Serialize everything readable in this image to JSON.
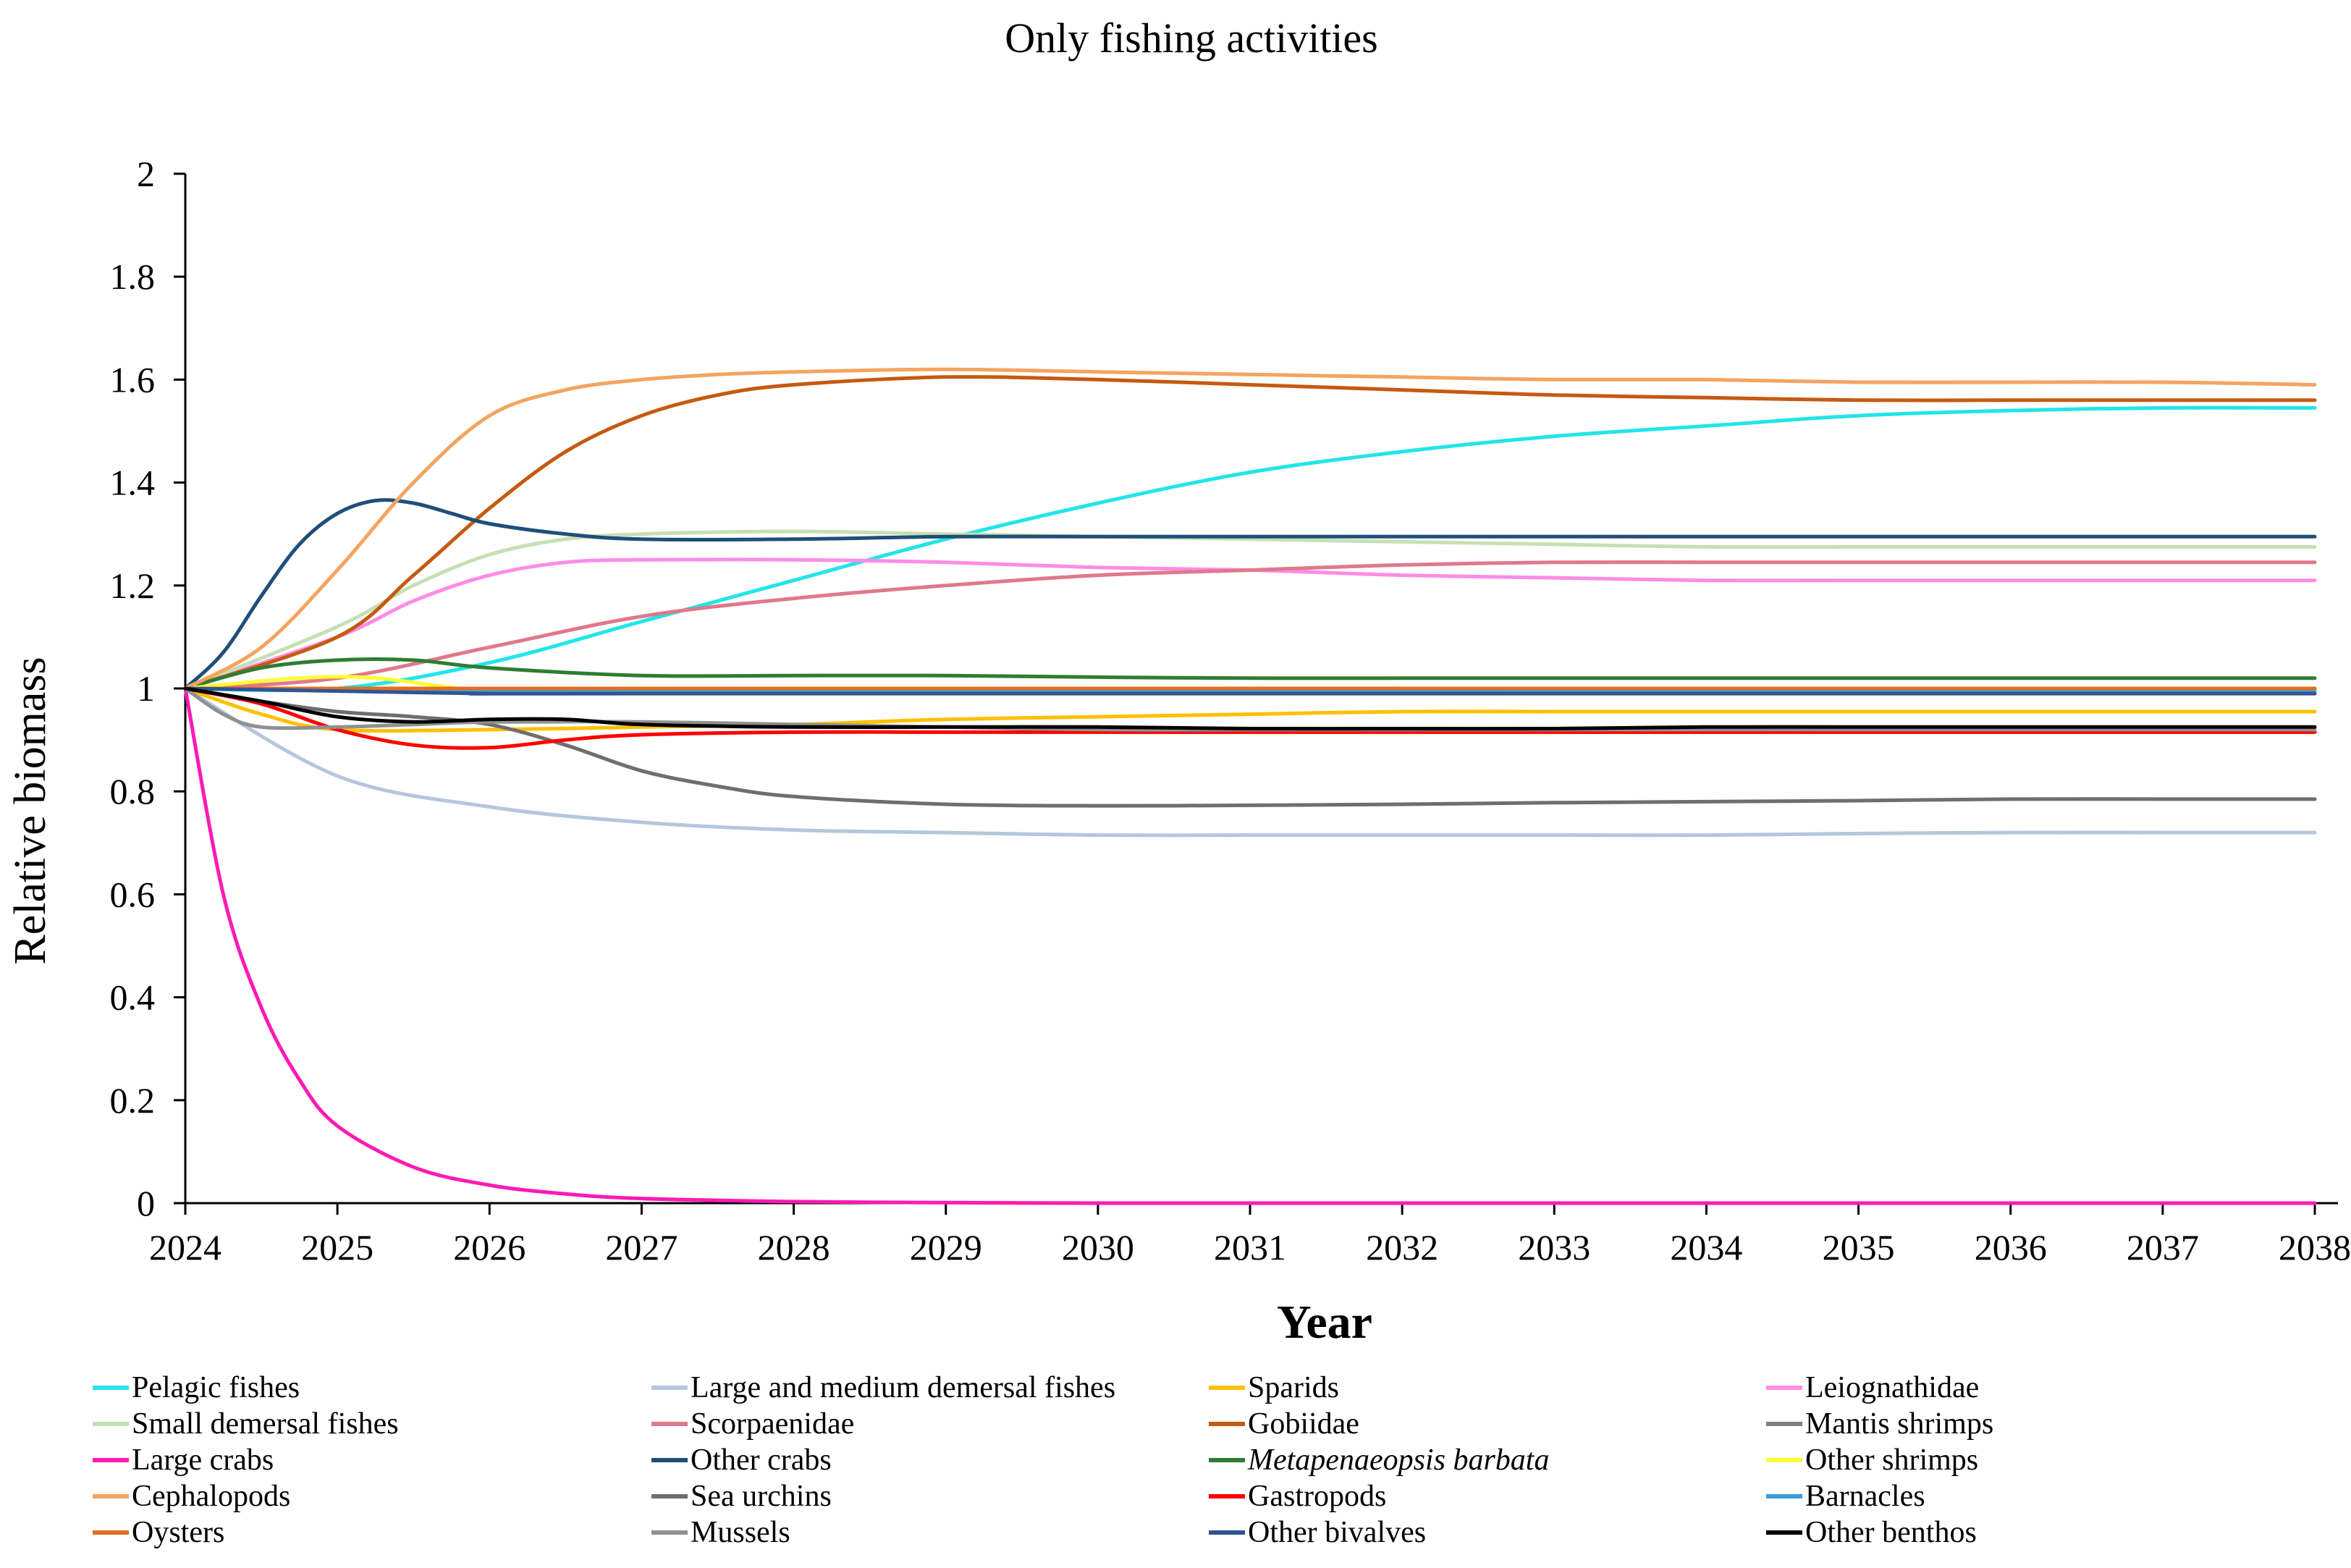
{
  "chart_data": {
    "type": "line",
    "title": "Only fishing activities",
    "xlabel": "Year",
    "ylabel": "Relative biomass",
    "xlim": [
      2024,
      2038
    ],
    "ylim": [
      0,
      2
    ],
    "x_ticks": [
      "2024",
      "2025",
      "2026",
      "2027",
      "2028",
      "2029",
      "2030",
      "2031",
      "2032",
      "2033",
      "2034",
      "2035",
      "2036",
      "2037",
      "2038"
    ],
    "y_ticks": [
      "0",
      "0.2",
      "0.4",
      "0.6",
      "0.8",
      "1",
      "1.2",
      "1.4",
      "1.6",
      "1.8",
      "2"
    ],
    "y_tick_values": [
      0,
      0.2,
      0.4,
      0.6,
      0.8,
      1,
      1.2,
      1.4,
      1.6,
      1.8,
      2
    ],
    "grid": false,
    "legend_position": "bottom",
    "series": [
      {
        "name": "Pelagic fishes",
        "color": "#22e5e8",
        "x": [
          2024,
          2025,
          2026,
          2027,
          2028,
          2029,
          2030,
          2031,
          2032,
          2033,
          2034,
          2035,
          2036,
          2037,
          2038
        ],
        "values": [
          1.0,
          1.0,
          1.05,
          1.13,
          1.21,
          1.29,
          1.36,
          1.42,
          1.46,
          1.49,
          1.51,
          1.53,
          1.54,
          1.545,
          1.545
        ]
      },
      {
        "name": "Large and medium demersal fishes",
        "color": "#b4c7dc",
        "x": [
          2024,
          2025,
          2026,
          2027,
          2028,
          2029,
          2030,
          2031,
          2032,
          2033,
          2034,
          2035,
          2036,
          2037,
          2038
        ],
        "values": [
          1.0,
          0.83,
          0.77,
          0.74,
          0.725,
          0.72,
          0.715,
          0.715,
          0.715,
          0.715,
          0.715,
          0.718,
          0.72,
          0.72,
          0.72
        ]
      },
      {
        "name": "Sparids",
        "color": "#ffc000",
        "x": [
          2024,
          2024.5,
          2025,
          2026,
          2027,
          2028,
          2029,
          2030,
          2031,
          2032,
          2033,
          2034,
          2035,
          2036,
          2037,
          2038
        ],
        "values": [
          1.0,
          0.95,
          0.92,
          0.92,
          0.925,
          0.93,
          0.94,
          0.945,
          0.95,
          0.955,
          0.955,
          0.955,
          0.955,
          0.955,
          0.955,
          0.955
        ]
      },
      {
        "name": "Leiognathidae",
        "color": "#ff8ce6",
        "x": [
          2024,
          2025,
          2025.5,
          2026,
          2026.5,
          2027,
          2028,
          2029,
          2030,
          2031,
          2032,
          2033,
          2034,
          2035,
          2036,
          2037,
          2038
        ],
        "values": [
          1.0,
          1.1,
          1.17,
          1.22,
          1.245,
          1.25,
          1.25,
          1.245,
          1.235,
          1.23,
          1.22,
          1.215,
          1.21,
          1.21,
          1.21,
          1.21,
          1.21
        ]
      },
      {
        "name": "Small demersal fishes",
        "color": "#c6e0b4",
        "x": [
          2024,
          2025,
          2025.5,
          2026,
          2026.5,
          2027,
          2028,
          2029,
          2030,
          2031,
          2032,
          2033,
          2034,
          2035,
          2036,
          2037,
          2038
        ],
        "values": [
          1.0,
          1.12,
          1.2,
          1.26,
          1.29,
          1.3,
          1.305,
          1.3,
          1.295,
          1.29,
          1.285,
          1.28,
          1.275,
          1.275,
          1.275,
          1.275,
          1.275
        ]
      },
      {
        "name": "Scorpaenidae",
        "color": "#e0788c",
        "x": [
          2024,
          2025,
          2026,
          2027,
          2028,
          2029,
          2030,
          2031,
          2032,
          2033,
          2034,
          2035,
          2036,
          2037,
          2038
        ],
        "values": [
          1.0,
          1.02,
          1.08,
          1.14,
          1.175,
          1.2,
          1.22,
          1.23,
          1.24,
          1.245,
          1.245,
          1.245,
          1.245,
          1.245,
          1.245
        ]
      },
      {
        "name": "Gobiidae",
        "color": "#c55a11",
        "x": [
          2024,
          2025,
          2025.5,
          2026,
          2026.5,
          2027,
          2027.5,
          2028,
          2029,
          2030,
          2031,
          2032,
          2033,
          2034,
          2035,
          2036,
          2037,
          2038
        ],
        "values": [
          1.0,
          1.1,
          1.22,
          1.35,
          1.46,
          1.53,
          1.57,
          1.59,
          1.605,
          1.6,
          1.59,
          1.58,
          1.57,
          1.565,
          1.56,
          1.56,
          1.56,
          1.56
        ]
      },
      {
        "name": "Mantis shrimps",
        "color": "#7f7f7f",
        "x": [
          2024,
          2038
        ],
        "values": [
          1.0,
          1.0
        ]
      },
      {
        "name": "Large crabs",
        "color": "#ff1ab3",
        "x": [
          2024,
          2024.25,
          2024.5,
          2024.75,
          2025,
          2025.5,
          2026,
          2026.5,
          2027,
          2028,
          2029,
          2030,
          2031,
          2032,
          2033,
          2034,
          2035,
          2036,
          2037,
          2038
        ],
        "values": [
          1.0,
          0.6,
          0.38,
          0.24,
          0.15,
          0.07,
          0.035,
          0.018,
          0.009,
          0.003,
          0.001,
          0,
          0,
          0,
          0,
          0,
          0,
          0,
          0,
          0
        ]
      },
      {
        "name": "Other crabs",
        "color": "#1f4e79",
        "x": [
          2024,
          2024.25,
          2024.5,
          2024.75,
          2025,
          2025.25,
          2025.5,
          2025.75,
          2026,
          2026.5,
          2027,
          2028,
          2029,
          2030,
          2031,
          2032,
          2033,
          2034,
          2035,
          2036,
          2037,
          2038
        ],
        "values": [
          1.0,
          1.07,
          1.18,
          1.28,
          1.34,
          1.365,
          1.36,
          1.34,
          1.32,
          1.3,
          1.29,
          1.29,
          1.295,
          1.295,
          1.295,
          1.295,
          1.295,
          1.295,
          1.295,
          1.295,
          1.295,
          1.295
        ]
      },
      {
        "name": "Metapenaeopsis barbata",
        "color": "#2e7d32",
        "italic": true,
        "x": [
          2024,
          2024.5,
          2025,
          2025.5,
          2026,
          2027,
          2028,
          2029,
          2030,
          2031,
          2032,
          2033,
          2034,
          2035,
          2036,
          2037,
          2038
        ],
        "values": [
          1.0,
          1.04,
          1.055,
          1.055,
          1.04,
          1.025,
          1.025,
          1.025,
          1.022,
          1.02,
          1.02,
          1.02,
          1.02,
          1.02,
          1.02,
          1.02,
          1.02
        ]
      },
      {
        "name": "Other shrimps",
        "color": "#ffff33",
        "x": [
          2024,
          2024.75,
          2025.25,
          2026,
          2027,
          2038
        ],
        "values": [
          1.0,
          1.02,
          1.02,
          0.995,
          0.99,
          0.99
        ]
      },
      {
        "name": "Cephalopods",
        "color": "#f4a460",
        "x": [
          2024,
          2024.5,
          2025,
          2025.5,
          2026,
          2026.5,
          2027,
          2027.5,
          2028,
          2029,
          2030,
          2031,
          2032,
          2033,
          2034,
          2035,
          2036,
          2037,
          2038
        ],
        "values": [
          1.0,
          1.08,
          1.23,
          1.4,
          1.53,
          1.58,
          1.6,
          1.61,
          1.615,
          1.62,
          1.615,
          1.61,
          1.605,
          1.6,
          1.6,
          1.595,
          1.595,
          1.595,
          1.59
        ]
      },
      {
        "name": "Sea urchins",
        "color": "#6e6e6e",
        "x": [
          2024,
          2024.5,
          2025,
          2025.5,
          2026,
          2026.5,
          2027,
          2027.5,
          2028,
          2029,
          2030,
          2031,
          2032,
          2033,
          2034,
          2035,
          2036,
          2037,
          2038
        ],
        "values": [
          1.0,
          0.975,
          0.955,
          0.945,
          0.93,
          0.89,
          0.84,
          0.81,
          0.79,
          0.775,
          0.772,
          0.773,
          0.775,
          0.778,
          0.78,
          0.782,
          0.785,
          0.785,
          0.785
        ]
      },
      {
        "name": "Gastropods",
        "color": "#ff0000",
        "x": [
          2024,
          2024.5,
          2025,
          2025.5,
          2026,
          2026.5,
          2027,
          2028,
          2029,
          2030,
          2031,
          2032,
          2033,
          2034,
          2035,
          2036,
          2037,
          2038
        ],
        "values": [
          1.0,
          0.97,
          0.92,
          0.89,
          0.885,
          0.9,
          0.91,
          0.915,
          0.915,
          0.915,
          0.915,
          0.915,
          0.915,
          0.915,
          0.915,
          0.915,
          0.915,
          0.915
        ]
      },
      {
        "name": "Barnacles",
        "color": "#3a9bdc",
        "x": [
          2024,
          2025,
          2026,
          2027,
          2038
        ],
        "values": [
          1.0,
          0.997,
          0.995,
          0.995,
          0.995
        ]
      },
      {
        "name": "Oysters",
        "color": "#e07020",
        "x": [
          2024,
          2038
        ],
        "values": [
          1.0,
          1.0
        ]
      },
      {
        "name": "Mussels",
        "color": "#909090",
        "x": [
          2024,
          2024.25,
          2024.5,
          2025,
          2025.5,
          2026,
          2027,
          2028,
          2029,
          2030,
          2031,
          2032,
          2033,
          2034,
          2035,
          2036,
          2037,
          2038
        ],
        "values": [
          1.0,
          0.95,
          0.925,
          0.925,
          0.93,
          0.935,
          0.935,
          0.93,
          0.925,
          0.92,
          0.92,
          0.92,
          0.92,
          0.92,
          0.92,
          0.92,
          0.92,
          0.92
        ]
      },
      {
        "name": "Other bivalves",
        "color": "#2f5597",
        "x": [
          2024,
          2025,
          2026,
          2027,
          2038
        ],
        "values": [
          1.0,
          0.995,
          0.99,
          0.99,
          0.99
        ]
      },
      {
        "name": "Other benthos",
        "color": "#000000",
        "x": [
          2024,
          2024.5,
          2025,
          2025.5,
          2026,
          2026.5,
          2027,
          2028,
          2029,
          2030,
          2031,
          2032,
          2033,
          2034,
          2035,
          2036,
          2037,
          2038
        ],
        "values": [
          1.0,
          0.975,
          0.945,
          0.935,
          0.94,
          0.94,
          0.93,
          0.925,
          0.925,
          0.925,
          0.922,
          0.922,
          0.922,
          0.925,
          0.925,
          0.925,
          0.925,
          0.925
        ]
      }
    ]
  }
}
